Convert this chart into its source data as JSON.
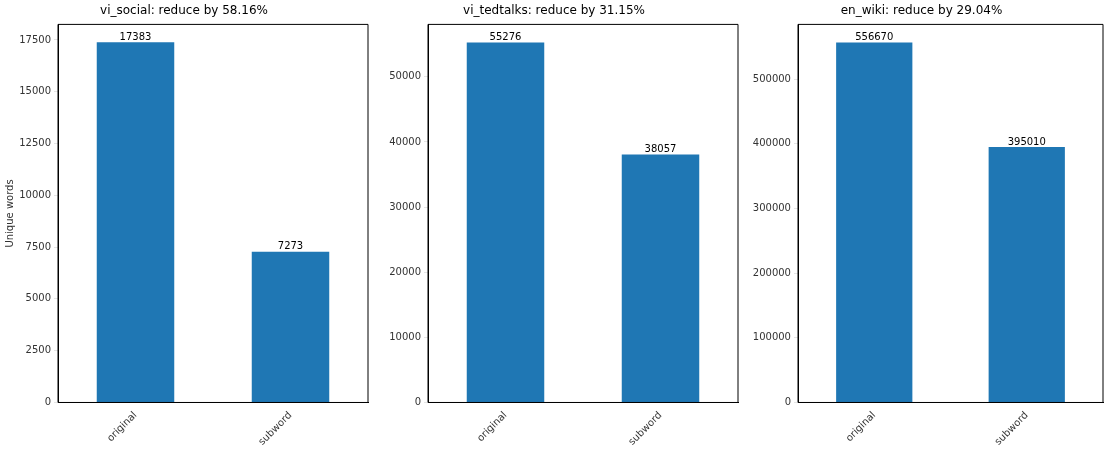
{
  "chart_data": [
    {
      "type": "bar",
      "title": "vi_social: reduce by 58.16%",
      "ylabel": "Unique words",
      "categories": [
        "original",
        "subword"
      ],
      "values": [
        17383,
        7273
      ],
      "color": "#1f77b4",
      "ylim": [
        0,
        18250
      ],
      "yticks": [
        0,
        2500,
        5000,
        7500,
        10000,
        12500,
        15000,
        17500
      ],
      "data_labels": true,
      "grid": false,
      "legend": false
    },
    {
      "type": "bar",
      "title": "vi_tedtalks: reduce by 31.15%",
      "categories": [
        "original",
        "subword"
      ],
      "values": [
        55276,
        38057
      ],
      "color": "#1f77b4",
      "ylim": [
        0,
        58040
      ],
      "yticks": [
        0,
        10000,
        20000,
        30000,
        40000,
        50000
      ],
      "data_labels": true,
      "grid": false,
      "legend": false
    },
    {
      "type": "bar",
      "title": "en_wiki: reduce by 29.04%",
      "categories": [
        "original",
        "subword"
      ],
      "values": [
        556670,
        395010
      ],
      "color": "#1f77b4",
      "ylim": [
        0,
        584500
      ],
      "yticks": [
        0,
        100000,
        200000,
        300000,
        400000,
        500000
      ],
      "data_labels": true,
      "grid": false,
      "legend": false
    }
  ]
}
